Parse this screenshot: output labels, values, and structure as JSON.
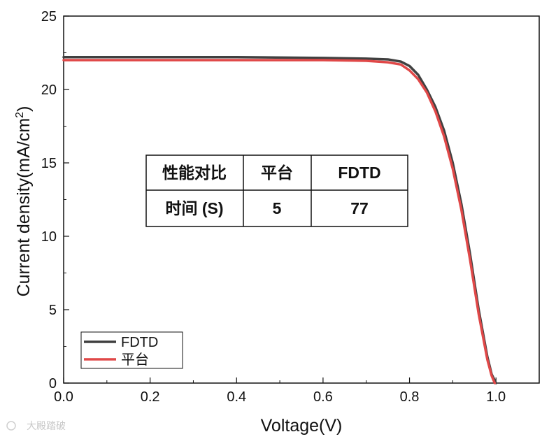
{
  "chart_data": {
    "type": "line",
    "xlabel": "Voltage(V)",
    "ylabel": "Current density(mA/cm",
    "ylabel_sup": "2",
    "ylabel_end": ")",
    "xlim": [
      0.0,
      1.1
    ],
    "ylim": [
      0,
      25
    ],
    "x_ticks": [
      "0.0",
      "0.2",
      "0.4",
      "0.6",
      "0.8",
      "1.0"
    ],
    "y_ticks": [
      "0",
      "5",
      "10",
      "15",
      "20",
      "25"
    ],
    "grid": false,
    "legend_position": "bottom-left",
    "series": [
      {
        "name": "FDTD",
        "color": "#404040",
        "x": [
          0.0,
          0.2,
          0.4,
          0.6,
          0.7,
          0.75,
          0.78,
          0.8,
          0.82,
          0.84,
          0.86,
          0.88,
          0.9,
          0.92,
          0.94,
          0.96,
          0.98,
          0.99,
          1.0
        ],
        "y": [
          22.2,
          22.2,
          22.2,
          22.15,
          22.1,
          22.05,
          21.9,
          21.6,
          21.0,
          20.0,
          18.8,
          17.2,
          15.0,
          12.2,
          8.8,
          5.0,
          1.8,
          0.6,
          0.0
        ]
      },
      {
        "name": "平台",
        "color": "#e04848",
        "x": [
          0.0,
          0.2,
          0.4,
          0.6,
          0.7,
          0.75,
          0.78,
          0.8,
          0.82,
          0.84,
          0.86,
          0.88,
          0.9,
          0.92,
          0.94,
          0.96,
          0.98,
          0.99,
          0.997
        ],
        "y": [
          22.0,
          22.0,
          22.0,
          22.0,
          21.95,
          21.85,
          21.7,
          21.3,
          20.7,
          19.8,
          18.5,
          16.8,
          14.6,
          11.8,
          8.4,
          4.7,
          1.6,
          0.5,
          0.0
        ]
      }
    ]
  },
  "table": {
    "header": [
      "性能对比",
      "平台",
      "FDTD"
    ],
    "row": [
      "时间 (S)",
      "5",
      "77"
    ]
  },
  "watermark": "大殿踏破",
  "colors": {
    "axis": "#111111",
    "table_border": "#111111"
  }
}
